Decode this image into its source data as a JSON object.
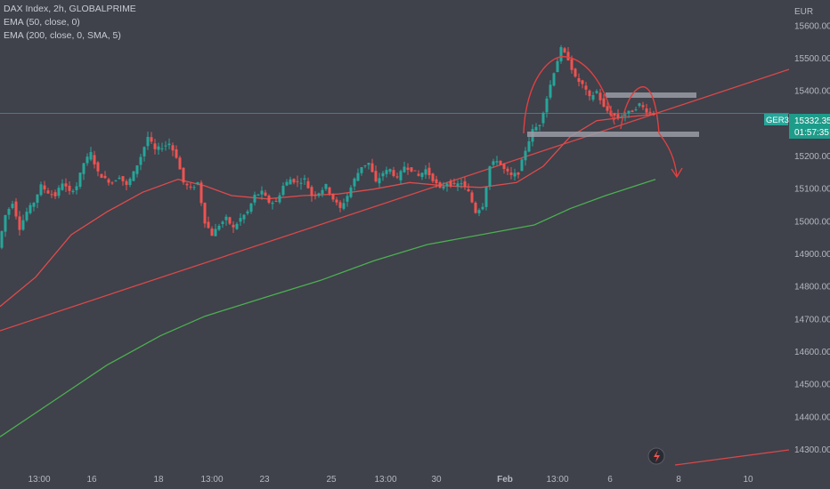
{
  "header": {
    "lines": [
      "DAX Index, 2h, GLOBALPRIME",
      "EMA (50, close, 0)",
      "EMA (200, close, 0, SMA, 5)"
    ]
  },
  "price_badge": {
    "symbol": "GER30",
    "price": "15332.35",
    "countdown": "01:57:35"
  },
  "colors": {
    "background": "#3f414b",
    "bull": "#26a69a",
    "bear": "#ef5350",
    "ema50": "#e04b4b",
    "ema200": "#4caf50",
    "trendline": "#d94848",
    "pattern": "#e04040",
    "zone": "#9a9ca4",
    "price_line": "#26a69a",
    "badge_symbol_bg": "#26a69a",
    "badge_price_bg": "#1e9c8a"
  },
  "icons": {
    "alert": "lightning-icon"
  },
  "chart_data": {
    "type": "candlestick",
    "unit": "EUR",
    "y_ticks": [
      15600,
      15500,
      15400,
      15300,
      15200,
      15100,
      15000,
      14900,
      14800,
      14700,
      14600,
      14500,
      14400,
      14300
    ],
    "ylim": [
      14240,
      15680
    ],
    "x_ticks": [
      "13:00",
      "16",
      "18",
      "13:00",
      "23",
      "25",
      "13:00",
      "30",
      "Feb",
      "13:00",
      "6",
      "8",
      "10"
    ],
    "last_price": 15332.35,
    "series": [
      {
        "name": "EMA (50, close, 0)"
      },
      {
        "name": "EMA (200, close, 0, SMA, 5)"
      }
    ],
    "price_path_points": [
      [
        0,
        14920
      ],
      [
        8,
        15020
      ],
      [
        16,
        15060
      ],
      [
        24,
        14980
      ],
      [
        32,
        15030
      ],
      [
        40,
        15060
      ],
      [
        48,
        15110
      ],
      [
        56,
        15090
      ],
      [
        64,
        15080
      ],
      [
        72,
        15120
      ],
      [
        80,
        15090
      ],
      [
        88,
        15110
      ],
      [
        96,
        15180
      ],
      [
        104,
        15210
      ],
      [
        112,
        15150
      ],
      [
        120,
        15130
      ],
      [
        128,
        15120
      ],
      [
        136,
        15140
      ],
      [
        144,
        15110
      ],
      [
        152,
        15150
      ],
      [
        160,
        15200
      ],
      [
        168,
        15260
      ],
      [
        176,
        15220
      ],
      [
        184,
        15230
      ],
      [
        192,
        15240
      ],
      [
        200,
        15200
      ],
      [
        208,
        15120
      ],
      [
        216,
        15100
      ],
      [
        224,
        15120
      ],
      [
        232,
        15000
      ],
      [
        240,
        14960
      ],
      [
        248,
        14990
      ],
      [
        256,
        15010
      ],
      [
        264,
        14980
      ],
      [
        272,
        15010
      ],
      [
        280,
        15030
      ],
      [
        288,
        15080
      ],
      [
        296,
        15090
      ],
      [
        304,
        15060
      ],
      [
        312,
        15060
      ],
      [
        320,
        15110
      ],
      [
        328,
        15130
      ],
      [
        336,
        15120
      ],
      [
        344,
        15130
      ],
      [
        352,
        15080
      ],
      [
        360,
        15090
      ],
      [
        368,
        15110
      ],
      [
        376,
        15070
      ],
      [
        384,
        15040
      ],
      [
        392,
        15080
      ],
      [
        400,
        15130
      ],
      [
        408,
        15170
      ],
      [
        416,
        15180
      ],
      [
        424,
        15120
      ],
      [
        432,
        15150
      ],
      [
        440,
        15160
      ],
      [
        448,
        15130
      ],
      [
        456,
        15170
      ],
      [
        464,
        15160
      ],
      [
        472,
        15140
      ],
      [
        480,
        15160
      ],
      [
        488,
        15130
      ],
      [
        496,
        15100
      ],
      [
        504,
        15120
      ],
      [
        512,
        15110
      ],
      [
        520,
        15120
      ],
      [
        528,
        15090
      ],
      [
        536,
        15030
      ],
      [
        544,
        15050
      ],
      [
        552,
        15170
      ],
      [
        560,
        15190
      ],
      [
        568,
        15160
      ],
      [
        576,
        15140
      ],
      [
        584,
        15150
      ],
      [
        592,
        15220
      ],
      [
        600,
        15280
      ],
      [
        608,
        15300
      ],
      [
        616,
        15380
      ],
      [
        624,
        15460
      ],
      [
        632,
        15530
      ],
      [
        640,
        15500
      ],
      [
        648,
        15440
      ],
      [
        656,
        15420
      ],
      [
        664,
        15380
      ],
      [
        672,
        15400
      ],
      [
        680,
        15350
      ],
      [
        688,
        15330
      ],
      [
        696,
        15320
      ],
      [
        704,
        15330
      ],
      [
        712,
        15340
      ],
      [
        720,
        15360
      ],
      [
        728,
        15340
      ],
      [
        736,
        15332
      ]
    ],
    "ema50_points": [
      [
        0,
        14740
      ],
      [
        40,
        14830
      ],
      [
        80,
        14960
      ],
      [
        120,
        15030
      ],
      [
        160,
        15090
      ],
      [
        200,
        15130
      ],
      [
        230,
        15110
      ],
      [
        260,
        15080
      ],
      [
        300,
        15070
      ],
      [
        340,
        15080
      ],
      [
        380,
        15085
      ],
      [
        420,
        15100
      ],
      [
        460,
        15120
      ],
      [
        500,
        15110
      ],
      [
        540,
        15105
      ],
      [
        580,
        15120
      ],
      [
        610,
        15170
      ],
      [
        640,
        15260
      ],
      [
        670,
        15310
      ],
      [
        700,
        15320
      ],
      [
        736,
        15330
      ]
    ],
    "ema200_points": [
      [
        0,
        14340
      ],
      [
        60,
        14450
      ],
      [
        120,
        14560
      ],
      [
        180,
        14650
      ],
      [
        230,
        14710
      ],
      [
        300,
        14770
      ],
      [
        360,
        14820
      ],
      [
        420,
        14880
      ],
      [
        480,
        14930
      ],
      [
        540,
        14960
      ],
      [
        600,
        14990
      ],
      [
        640,
        15040
      ],
      [
        680,
        15080
      ],
      [
        736,
        15130
      ]
    ]
  }
}
